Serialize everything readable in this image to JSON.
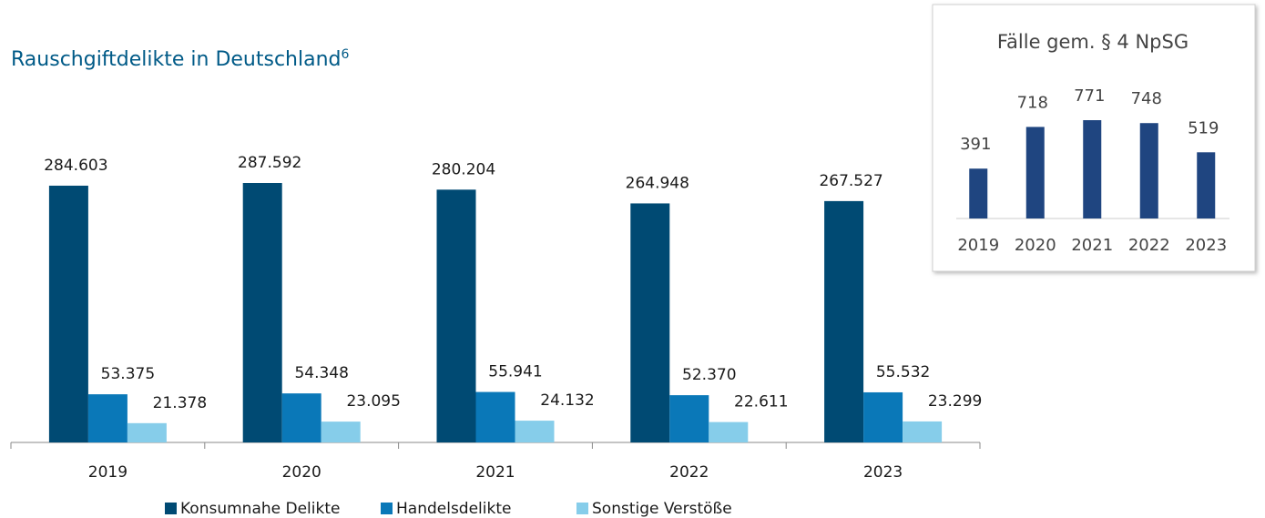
{
  "main_chart": {
    "type": "bar",
    "title": "Rauschgiftdelikte in Deutschland",
    "title_footnote": "6",
    "categories": [
      "2019",
      "2020",
      "2021",
      "2022",
      "2023"
    ],
    "series": [
      {
        "name": "Konsumnahe Delikte",
        "color": "#004a73",
        "values": [
          284603,
          287592,
          280204,
          264948,
          267527
        ],
        "value_labels": [
          "284.603",
          "287.592",
          "280.204",
          "264.948",
          "267.527"
        ]
      },
      {
        "name": "Handelsdelikte",
        "color": "#0a78b8",
        "values": [
          53375,
          54348,
          55941,
          52370,
          55532
        ],
        "value_labels": [
          "53.375",
          "54.348",
          "55.941",
          "52.370",
          "55.532"
        ]
      },
      {
        "name": "Sonstige Verstöße",
        "color": "#86cdea",
        "values": [
          21378,
          23095,
          24132,
          22611,
          23299
        ],
        "value_labels": [
          "21.378",
          "23.095",
          "24.132",
          "22.611",
          "23.299"
        ]
      }
    ]
  },
  "inset_chart": {
    "type": "bar",
    "title": "Fälle gem. § 4 NpSG",
    "color": "#1f4580",
    "categories": [
      "2019",
      "2020",
      "2021",
      "2022",
      "2023"
    ],
    "values": [
      391,
      718,
      771,
      748,
      519
    ]
  }
}
